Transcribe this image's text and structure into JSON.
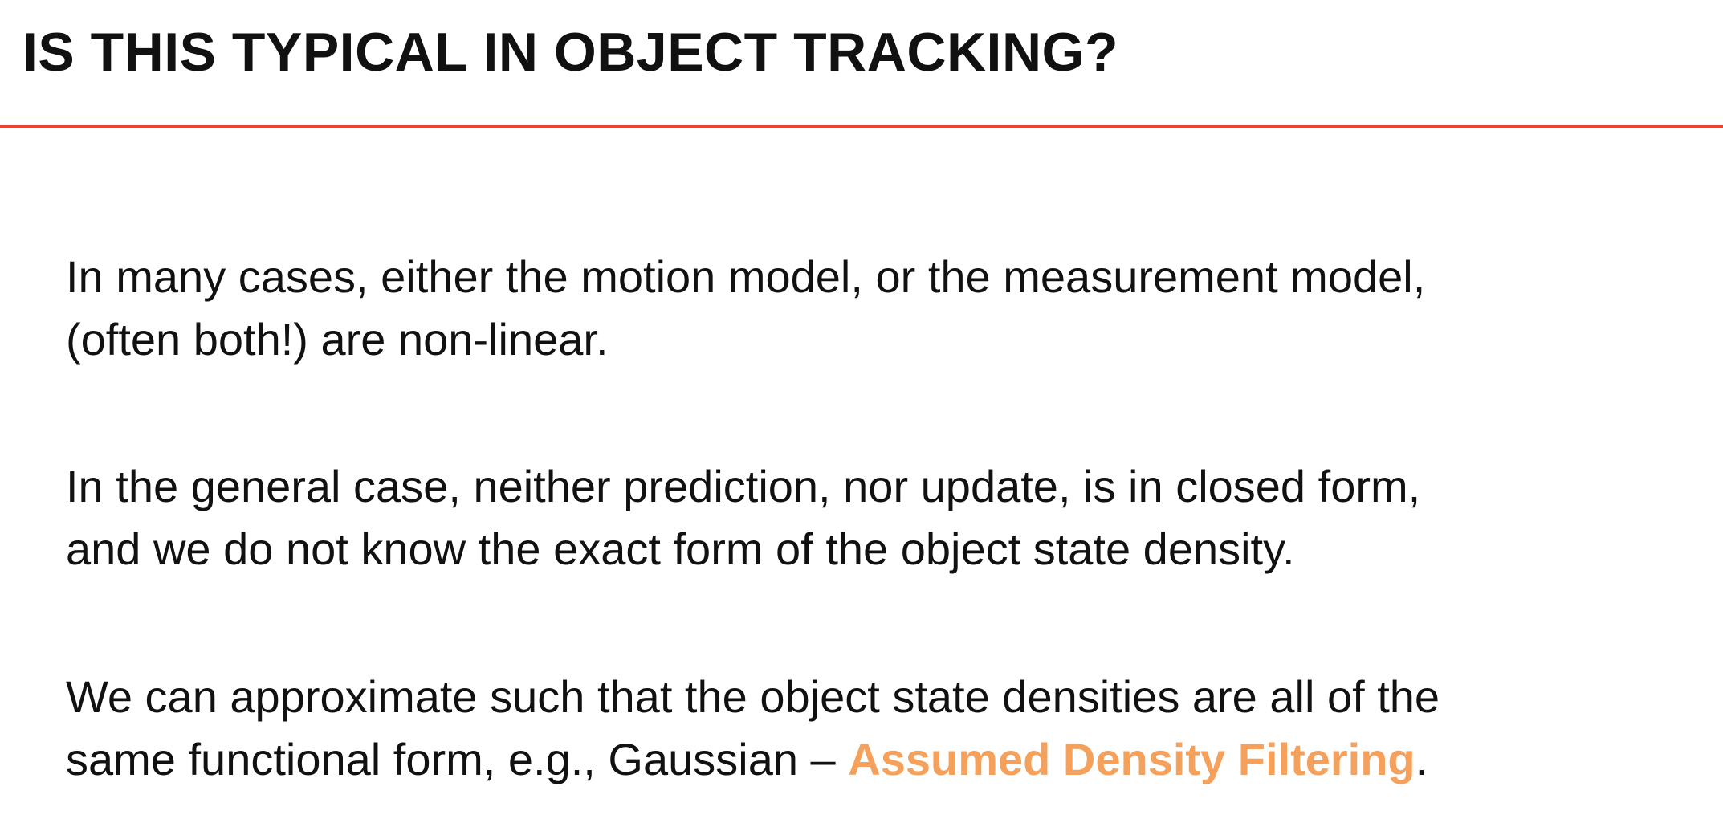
{
  "slide": {
    "title": "IS THIS TYPICAL IN OBJECT TRACKING?",
    "accent_color": "#e8452c",
    "highlight_color": "#f5a05b",
    "paragraphs": [
      {
        "lines": [
          "In many cases, either the motion model, or the measurement model,",
          "(often both!) are non-linear."
        ]
      },
      {
        "lines": [
          "In the general case, neither prediction, nor update, is in closed form,",
          "and we do not know the exact form of the object state density."
        ]
      },
      {
        "line1": "We can approximate such that the object state densities are all of the",
        "line2_prefix": "same functional form, e.g., Gaussian – ",
        "line2_highlight": "Assumed Density Filtering",
        "line2_suffix": "."
      }
    ]
  }
}
